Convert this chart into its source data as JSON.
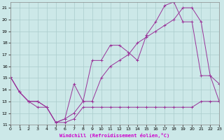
{
  "xlabel": "Windchill (Refroidissement éolien,°C)",
  "bg_color": "#cce8e8",
  "grid_color": "#aacccc",
  "line_color": "#993399",
  "xlim": [
    0,
    23
  ],
  "ylim": [
    11,
    21.5
  ],
  "xticks": [
    0,
    1,
    2,
    3,
    4,
    5,
    6,
    7,
    8,
    9,
    10,
    11,
    12,
    13,
    14,
    15,
    16,
    17,
    18,
    19,
    20,
    21,
    22,
    23
  ],
  "yticks": [
    11,
    12,
    13,
    14,
    15,
    16,
    17,
    18,
    19,
    20,
    21
  ],
  "line1_x": [
    0,
    1,
    2,
    3,
    4,
    5,
    6,
    7,
    8,
    9,
    10,
    11,
    12,
    13,
    14,
    15,
    16,
    17,
    18,
    19,
    20,
    21,
    22,
    23
  ],
  "line1_y": [
    15.1,
    13.8,
    13.0,
    12.5,
    12.5,
    11.2,
    11.2,
    11.5,
    12.5,
    12.5,
    12.5,
    12.5,
    12.5,
    12.5,
    12.5,
    12.5,
    12.5,
    12.5,
    12.5,
    12.5,
    12.5,
    13.0,
    13.0,
    13.0
  ],
  "line2_x": [
    0,
    1,
    2,
    3,
    4,
    5,
    6,
    7,
    8,
    9,
    10,
    11,
    12,
    13,
    14,
    15,
    16,
    17,
    18,
    19,
    20,
    21,
    22,
    23
  ],
  "line2_y": [
    15.1,
    13.8,
    13.0,
    13.0,
    12.5,
    11.2,
    11.5,
    14.5,
    13.0,
    16.5,
    16.5,
    17.8,
    17.8,
    17.2,
    16.5,
    18.7,
    19.8,
    21.2,
    21.5,
    19.8,
    19.8,
    15.2,
    15.2,
    14.5
  ],
  "line3_x": [
    0,
    1,
    2,
    3,
    4,
    5,
    6,
    7,
    8,
    9,
    10,
    11,
    12,
    13,
    14,
    15,
    16,
    17,
    18,
    19,
    20,
    21,
    22,
    23
  ],
  "line3_y": [
    15.1,
    13.8,
    13.0,
    13.0,
    12.5,
    11.2,
    11.5,
    12.0,
    13.0,
    13.0,
    15.0,
    16.0,
    16.5,
    17.0,
    18.0,
    18.5,
    19.0,
    19.5,
    20.0,
    21.0,
    21.0,
    19.8,
    15.2,
    13.0
  ]
}
